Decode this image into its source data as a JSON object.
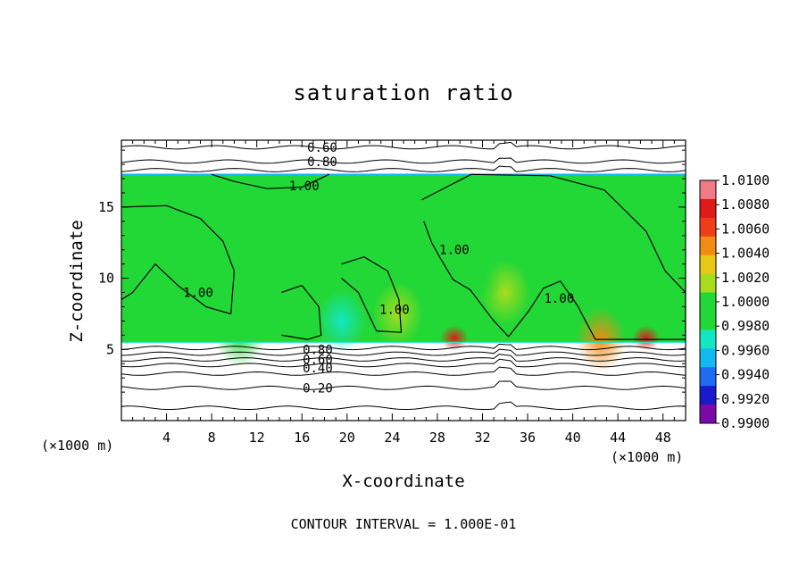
{
  "chart_data": {
    "type": "heatmap",
    "title": "saturation ratio",
    "xlabel": "X-coordinate",
    "ylabel": "Z-coordinate",
    "x_unit": "(×1000 m)",
    "footer": "CONTOUR INTERVAL = 1.000E-01",
    "xlim": [
      0,
      50
    ],
    "ylim": [
      0,
      19.7
    ],
    "x_ticks": [
      4,
      8,
      12,
      16,
      20,
      24,
      28,
      32,
      36,
      40,
      44,
      48
    ],
    "y_ticks": [
      5,
      10,
      15
    ],
    "colorbar": {
      "labels": [
        "1.0100",
        "1.0080",
        "1.0060",
        "1.0040",
        "1.0020",
        "1.0000",
        "0.9980",
        "0.9960",
        "0.9940",
        "0.9920",
        "0.9900"
      ],
      "min": 0.99,
      "max": 1.01,
      "colors": [
        "#7a0aa8",
        "#1a1acc",
        "#1e6cf0",
        "#12b8f0",
        "#14e6c2",
        "#22d836",
        "#22d836",
        "#a8dc1e",
        "#e8c814",
        "#f08c14",
        "#f03c1a",
        "#e01a1a",
        "#f07a86"
      ]
    },
    "contour_labels": [
      {
        "text": "0.60",
        "x": 17.8,
        "z": 19.2
      },
      {
        "text": "0.80",
        "x": 17.8,
        "z": 18.2
      },
      {
        "text": "1.00",
        "x": 16.2,
        "z": 16.5
      },
      {
        "text": "1.00",
        "x": 6.8,
        "z": 9.0
      },
      {
        "text": "1.00",
        "x": 24.2,
        "z": 7.8
      },
      {
        "text": "1.00",
        "x": 29.5,
        "z": 12.0
      },
      {
        "text": "1.00",
        "x": 38.8,
        "z": 8.6
      },
      {
        "text": "0.80",
        "x": 17.4,
        "z": 5.0
      },
      {
        "text": "0.60",
        "x": 17.4,
        "z": 4.3
      },
      {
        "text": "0.40",
        "x": 17.4,
        "z": 3.7
      },
      {
        "text": "0.20",
        "x": 17.4,
        "z": 2.3
      }
    ],
    "field": {
      "background": 1.0005,
      "cloud_layer_z": [
        5.5,
        17.3
      ],
      "hot_spots": [
        {
          "x": 29.5,
          "z": 5.8,
          "value": 1.008
        },
        {
          "x": 46.5,
          "z": 5.8,
          "value": 1.008
        },
        {
          "x": 42.5,
          "z": 5.7,
          "value": 1.004
        },
        {
          "x": 24.5,
          "z": 7.5,
          "value": 1.002
        },
        {
          "x": 34.0,
          "z": 9.0,
          "value": 1.0015
        }
      ],
      "cold_spots": [
        {
          "x": 19.5,
          "z": 7.0,
          "value": 0.997
        },
        {
          "x": 10.5,
          "z": 6.0,
          "value": 0.998
        },
        {
          "x": 31.5,
          "z": 10.0,
          "value": 0.999
        }
      ]
    }
  }
}
